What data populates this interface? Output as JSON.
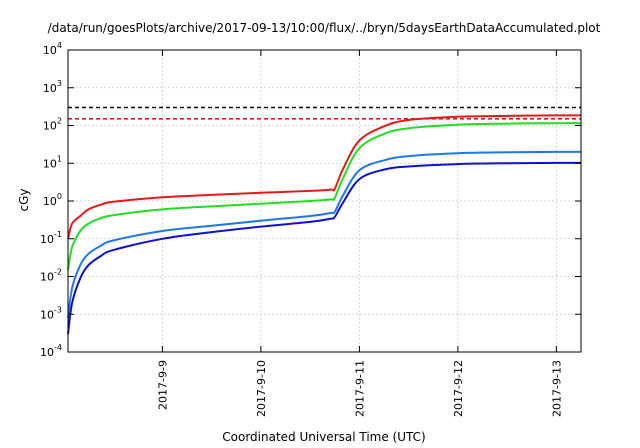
{
  "chart_data": {
    "type": "line",
    "title": "/data/run/goesPlots/archive/2017-09-13/10:00/flux/../bryn/5daysEarthDataAccumulated.plot",
    "xlabel": "Coordinated Universal Time (UTC)",
    "ylabel": "cGy",
    "y_scale": "log",
    "ylim": [
      0.0001,
      10000
    ],
    "xlim": [
      "2017-09-08 01:00",
      "2017-09-13 06:00"
    ],
    "y_ticks": [
      {
        "base": "10",
        "exp": "-4",
        "value": 0.0001
      },
      {
        "base": "10",
        "exp": "-3",
        "value": 0.001
      },
      {
        "base": "10",
        "exp": "-2",
        "value": 0.01
      },
      {
        "base": "10",
        "exp": "-1",
        "value": 0.1
      },
      {
        "base": "10",
        "exp": "0",
        "value": 1
      },
      {
        "base": "10",
        "exp": "1",
        "value": 10
      },
      {
        "base": "10",
        "exp": "2",
        "value": 100
      },
      {
        "base": "10",
        "exp": "3",
        "value": 1000
      },
      {
        "base": "10",
        "exp": "4",
        "value": 10000
      }
    ],
    "x_ticks": [
      {
        "label": "2017-9-9",
        "date": "2017-09-09 00:00"
      },
      {
        "label": "2017-9-10",
        "date": "2017-09-10 00:00"
      },
      {
        "label": "2017-9-11",
        "date": "2017-09-11 00:00"
      },
      {
        "label": "2017-9-12",
        "date": "2017-09-12 00:00"
      },
      {
        "label": "2017-9-13",
        "date": "2017-09-13 00:00"
      }
    ],
    "grid": true,
    "threshold_lines": [
      {
        "y": 300,
        "color": "#000000",
        "style": "dashed"
      },
      {
        "y": 150,
        "color": "#e41a1a",
        "style": "dashed"
      }
    ],
    "x": [
      "2017-09-08 01:00",
      "2017-09-08 02:00",
      "2017-09-08 04:00",
      "2017-09-08 06:00",
      "2017-09-08 09:00",
      "2017-09-08 12:00",
      "2017-09-09 00:00",
      "2017-09-09 12:00",
      "2017-09-10 00:00",
      "2017-09-10 12:00",
      "2017-09-10 17:00",
      "2017-09-10 18:00",
      "2017-09-10 20:00",
      "2017-09-11 00:00",
      "2017-09-11 06:00",
      "2017-09-11 12:00",
      "2017-09-12 00:00",
      "2017-09-12 12:00",
      "2017-09-13 00:00",
      "2017-09-13 06:00"
    ],
    "series": [
      {
        "color": "#e41a1a",
        "values": [
          0.1,
          0.25,
          0.4,
          0.6,
          0.8,
          0.95,
          1.25,
          1.45,
          1.65,
          1.85,
          2.0,
          2.1,
          7,
          40,
          95,
          140,
          170,
          180,
          185,
          185
        ]
      },
      {
        "color": "#22dd22",
        "values": [
          0.015,
          0.06,
          0.16,
          0.25,
          0.35,
          0.42,
          0.6,
          0.72,
          0.85,
          1.0,
          1.1,
          1.2,
          4,
          25,
          60,
          85,
          105,
          112,
          115,
          115
        ]
      },
      {
        "color": "#1e78e6",
        "values": [
          0.0008,
          0.005,
          0.02,
          0.04,
          0.065,
          0.09,
          0.16,
          0.22,
          0.3,
          0.4,
          0.48,
          0.52,
          1.4,
          6.5,
          12,
          15.5,
          18.5,
          19.5,
          20,
          20
        ]
      },
      {
        "color": "#1010cc",
        "values": [
          0.0003,
          0.002,
          0.009,
          0.02,
          0.035,
          0.05,
          0.1,
          0.15,
          0.21,
          0.28,
          0.34,
          0.38,
          0.9,
          3.8,
          6.8,
          8.2,
          9.5,
          10,
          10.2,
          10.2
        ]
      }
    ]
  }
}
